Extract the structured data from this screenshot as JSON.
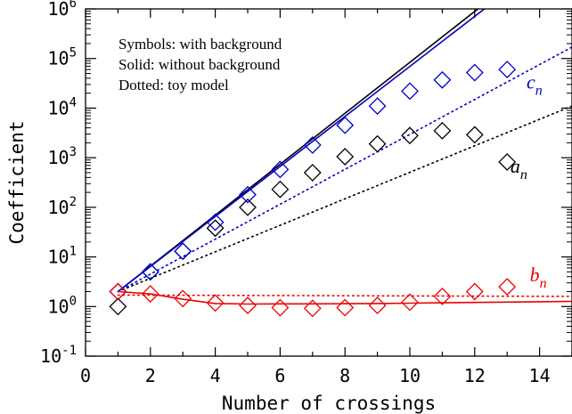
{
  "chart_data": {
    "type": "scatter",
    "xlabel": "Number of crossings",
    "ylabel": "Coefficient",
    "xlim": [
      0,
      15
    ],
    "ylim_log10": [
      -1,
      6
    ],
    "y_scale": "log",
    "x_ticks": [
      0,
      2,
      4,
      6,
      8,
      10,
      12,
      14
    ],
    "y_ticks": [
      {
        "base": "10",
        "exp": "-1",
        "value": 0.1
      },
      {
        "base": "10",
        "exp": "0",
        "value": 1
      },
      {
        "base": "10",
        "exp": "1",
        "value": 10
      },
      {
        "base": "10",
        "exp": "2",
        "value": 100
      },
      {
        "base": "10",
        "exp": "3",
        "value": 1000
      },
      {
        "base": "10",
        "exp": "4",
        "value": 10000
      },
      {
        "base": "10",
        "exp": "5",
        "value": 100000
      },
      {
        "base": "10",
        "exp": "6",
        "value": 1000000
      }
    ],
    "legend_text": [
      "Symbols: with background",
      "Solid: without background",
      "Dotted: toy model"
    ],
    "series": [
      {
        "name": "a",
        "subscript": "n",
        "color": "#000000",
        "points": {
          "x": [
            1,
            2,
            3,
            4,
            5,
            6,
            7,
            8,
            9,
            10,
            11,
            12,
            13
          ],
          "y": [
            1,
            5,
            13,
            38,
            100,
            230,
            500,
            1050,
            1900,
            2800,
            3500,
            2900,
            820
          ]
        },
        "solid": {
          "x": [
            1,
            12.1
          ],
          "y": [
            2,
            1000000
          ]
        },
        "dotted": {
          "x": [
            1,
            15
          ],
          "y": [
            2,
            11000
          ]
        }
      },
      {
        "name": "c",
        "subscript": "n",
        "color": "#0000cc",
        "points": {
          "x": [
            1,
            2,
            3,
            4,
            5,
            6,
            7,
            8,
            9,
            10,
            11,
            12,
            13
          ],
          "y": [
            2,
            5,
            13,
            50,
            180,
            580,
            1800,
            4500,
            11000,
            22000,
            37000,
            52000,
            60000
          ]
        },
        "solid": {
          "x": [
            1,
            12.3
          ],
          "y": [
            2,
            1000000
          ]
        },
        "dotted": {
          "x": [
            1,
            15
          ],
          "y": [
            2,
            170000
          ]
        }
      },
      {
        "name": "b",
        "subscript": "n",
        "color": "#ee0000",
        "points": {
          "x": [
            1,
            2,
            3,
            4,
            5,
            6,
            7,
            8,
            9,
            10,
            11,
            12,
            13
          ],
          "y": [
            2,
            1.8,
            1.45,
            1.18,
            1.05,
            0.95,
            0.92,
            0.95,
            1.05,
            1.22,
            1.6,
            2.0,
            2.5
          ]
        },
        "solid": {
          "x": [
            1,
            2,
            3,
            4,
            5,
            6,
            7,
            8,
            9,
            10,
            11,
            12,
            13,
            14,
            15
          ],
          "y": [
            2,
            1.8,
            1.4,
            1.15,
            1.12,
            1.13,
            1.13,
            1.14,
            1.15,
            1.17,
            1.19,
            1.21,
            1.23,
            1.25,
            1.27
          ]
        },
        "dotted": {
          "x": [
            1,
            15
          ],
          "y": [
            1.7,
            1.6
          ]
        }
      }
    ],
    "series_labels": [
      {
        "series": "c",
        "at": {
          "x": 13.6,
          "y": 25000
        }
      },
      {
        "series": "a",
        "at": {
          "x": 13.1,
          "y": 500
        }
      },
      {
        "series": "b",
        "at": {
          "x": 13.7,
          "y": 3.2
        }
      }
    ]
  }
}
